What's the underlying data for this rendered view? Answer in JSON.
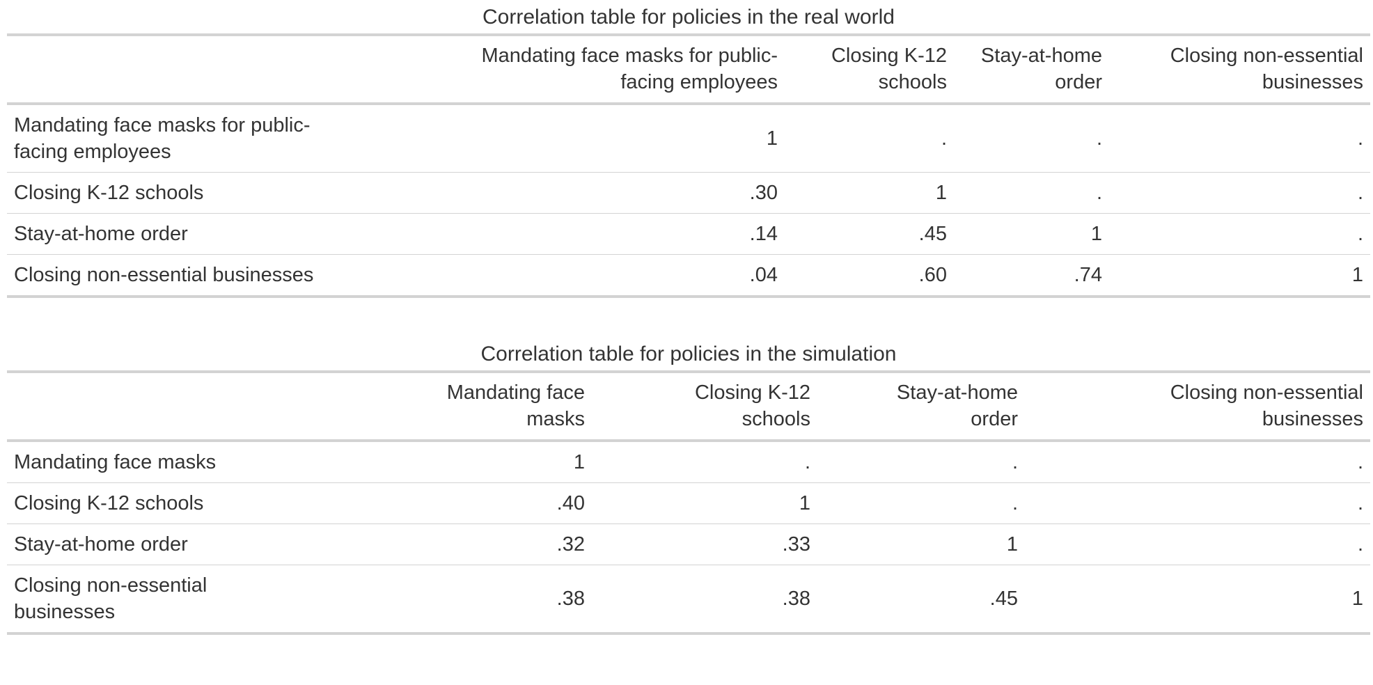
{
  "table1": {
    "caption": "Correlation table for policies in the real world",
    "columns": [
      "Mandating face masks for public-facing employees",
      "Closing K-12 schools",
      "Stay-at-home order",
      "Closing non-essential businesses"
    ],
    "column_lines": [
      [
        "Mandating face masks for public-",
        "facing employees"
      ],
      [
        "Closing K-12",
        "schools"
      ],
      [
        "Stay-at-home",
        "order"
      ],
      [
        "Closing non-essential",
        "businesses"
      ]
    ],
    "rows": [
      {
        "label_lines": [
          "Mandating face masks for public-",
          "facing employees"
        ],
        "values": [
          "1",
          ".",
          ".",
          "."
        ]
      },
      {
        "label_lines": [
          "Closing K-12 schools"
        ],
        "values": [
          ".30",
          "1",
          ".",
          "."
        ]
      },
      {
        "label_lines": [
          "Stay-at-home order"
        ],
        "values": [
          ".14",
          ".45",
          "1",
          "."
        ]
      },
      {
        "label_lines": [
          "Closing non-essential businesses"
        ],
        "values": [
          ".04",
          ".60",
          ".74",
          "1"
        ]
      }
    ]
  },
  "table2": {
    "caption": "Correlation table for policies in the simulation",
    "columns": [
      "Mandating face masks",
      "Closing K-12 schools",
      "Stay-at-home order",
      "Closing non-essential businesses"
    ],
    "column_lines": [
      [
        "Mandating face",
        "masks"
      ],
      [
        "Closing K-12",
        "schools"
      ],
      [
        "Stay-at-home",
        "order"
      ],
      [
        "Closing non-essential",
        "businesses"
      ]
    ],
    "rows": [
      {
        "label_lines": [
          "Mandating face masks"
        ],
        "values": [
          "1",
          ".",
          ".",
          "."
        ]
      },
      {
        "label_lines": [
          "Closing K-12 schools"
        ],
        "values": [
          ".40",
          "1",
          ".",
          "."
        ]
      },
      {
        "label_lines": [
          "Stay-at-home order"
        ],
        "values": [
          ".32",
          ".33",
          "1",
          "."
        ]
      },
      {
        "label_lines": [
          "Closing non-essential",
          "businesses"
        ],
        "values": [
          ".38",
          ".38",
          ".45",
          "1"
        ]
      }
    ]
  },
  "chart_data": [
    {
      "type": "table",
      "title": "Correlation table for policies in the real world",
      "categories": [
        "Mandating face masks for public-facing employees",
        "Closing K-12 schools",
        "Stay-at-home order",
        "Closing non-essential businesses"
      ],
      "series": [
        {
          "name": "Mandating face masks for public-facing employees",
          "values": [
            1,
            null,
            null,
            null
          ]
        },
        {
          "name": "Closing K-12 schools",
          "values": [
            0.3,
            1,
            null,
            null
          ]
        },
        {
          "name": "Stay-at-home order",
          "values": [
            0.14,
            0.45,
            1,
            null
          ]
        },
        {
          "name": "Closing non-essential businesses",
          "values": [
            0.04,
            0.6,
            0.74,
            1
          ]
        }
      ]
    },
    {
      "type": "table",
      "title": "Correlation table for policies in the simulation",
      "categories": [
        "Mandating face masks",
        "Closing K-12 schools",
        "Stay-at-home order",
        "Closing non-essential businesses"
      ],
      "series": [
        {
          "name": "Mandating face masks",
          "values": [
            1,
            null,
            null,
            null
          ]
        },
        {
          "name": "Closing K-12 schools",
          "values": [
            0.4,
            1,
            null,
            null
          ]
        },
        {
          "name": "Stay-at-home order",
          "values": [
            0.32,
            0.33,
            1,
            null
          ]
        },
        {
          "name": "Closing non-essential businesses",
          "values": [
            0.38,
            0.38,
            0.45,
            1
          ]
        }
      ]
    }
  ]
}
